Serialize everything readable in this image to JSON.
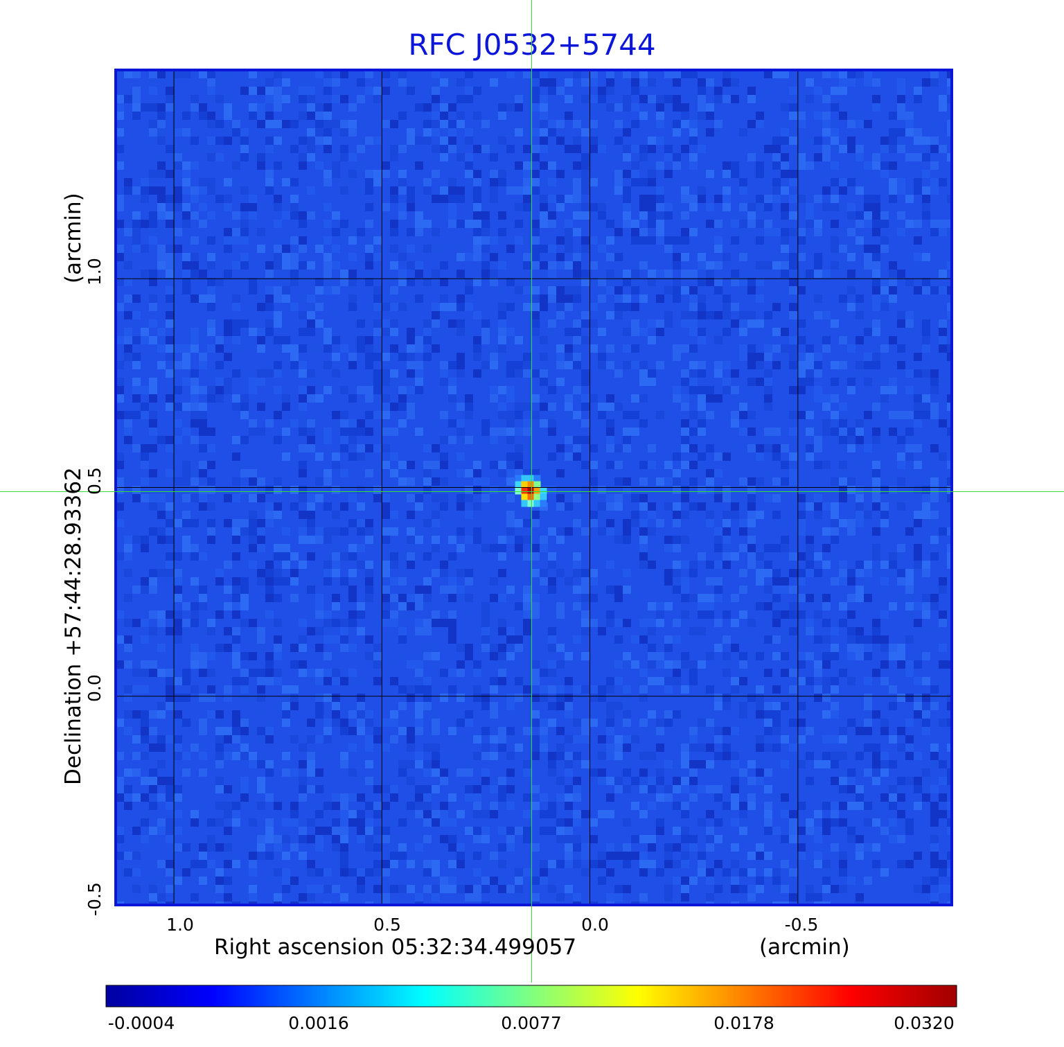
{
  "title": "RFC J0532+5744",
  "x_axis": {
    "label": "Right ascension  05:32:34.499057",
    "unit": "(arcmin)",
    "ticks": [
      "1.0",
      "0.5",
      "0.0",
      "-0.5"
    ],
    "tick_values": [
      1.0,
      0.5,
      0.0,
      -0.5
    ],
    "range": [
      1.14,
      -0.87
    ]
  },
  "y_axis": {
    "label": "Declination  +57:44:28.93362",
    "unit": "(arcmin)",
    "ticks": [
      "1.0",
      "0.5",
      "0.0",
      "-0.5"
    ],
    "tick_values": [
      1.0,
      0.5,
      0.0,
      -0.5
    ],
    "range": [
      -0.5,
      1.5
    ]
  },
  "source": {
    "x_arcmin": 0.14,
    "y_arcmin": 0.49,
    "peak": 0.032
  },
  "colorbar": {
    "ticks": [
      "-0.0004",
      "0.0016",
      "0.0077",
      "0.0178",
      "0.0320"
    ],
    "colors": [
      "#0000a0",
      "#0000ff",
      "#0080ff",
      "#00ffff",
      "#80ff80",
      "#ffff00",
      "#ff8000",
      "#ff0000",
      "#a00000"
    ]
  },
  "colors": {
    "title": "#0b16d8",
    "frame": "#0b16d8",
    "background_field": "#1f4fe6",
    "crosshair": "#33e033",
    "grid": "#000000"
  }
}
